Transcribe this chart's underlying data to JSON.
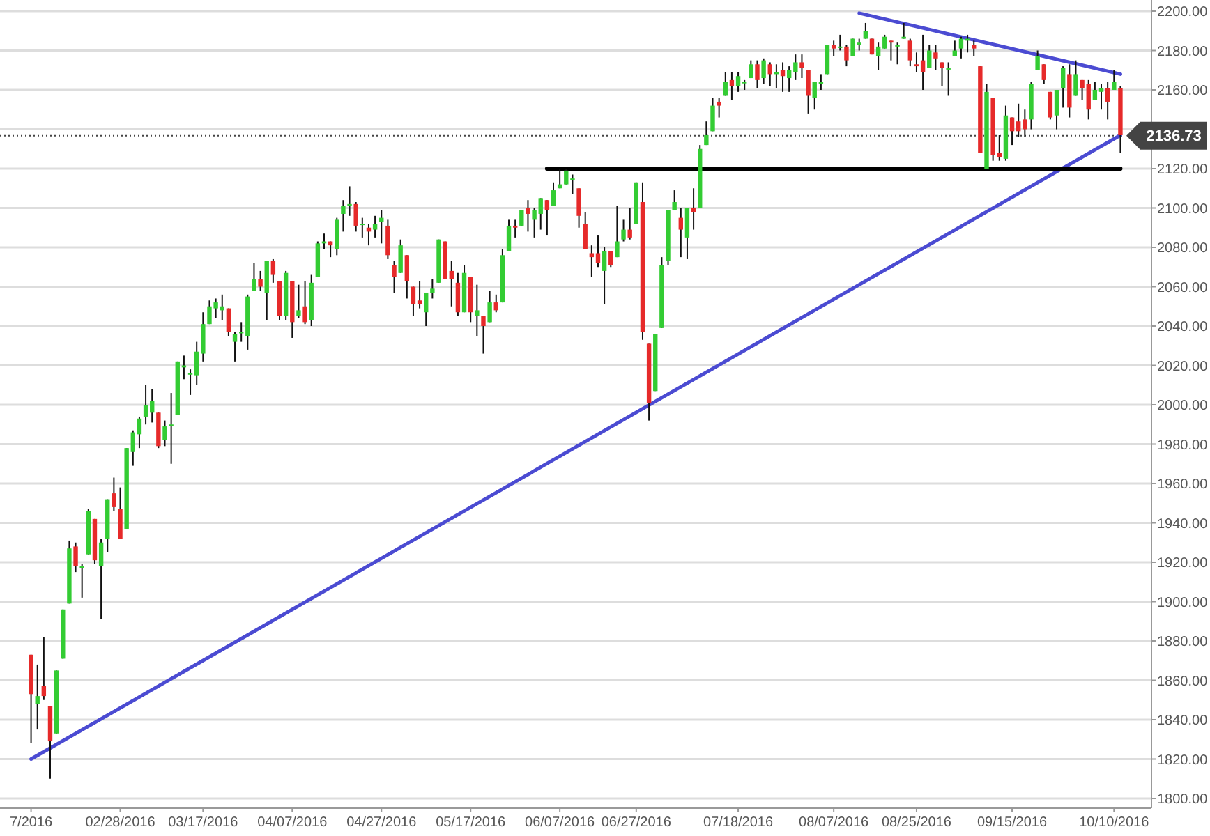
{
  "chart_data": {
    "type": "candlestick",
    "categories": [
      "7/2016",
      null,
      null,
      null,
      null,
      null,
      null,
      null,
      null,
      null,
      null,
      null,
      null,
      null,
      "02/28/2016",
      null,
      null,
      null,
      null,
      null,
      null,
      null,
      null,
      null,
      null,
      null,
      null,
      "03/17/2016",
      null,
      null,
      null,
      null,
      null,
      null,
      null,
      null,
      null,
      null,
      null,
      null,
      null,
      "04/07/2016",
      null,
      null,
      null,
      null,
      null,
      null,
      null,
      null,
      null,
      null,
      null,
      null,
      null,
      "04/27/2016",
      null,
      null,
      null,
      null,
      null,
      null,
      null,
      null,
      null,
      null,
      null,
      null,
      null,
      "05/17/2016",
      null,
      null,
      null,
      null,
      null,
      null,
      null,
      null,
      null,
      null,
      null,
      null,
      null,
      "06/07/2016",
      null,
      null,
      null,
      null,
      null,
      null,
      null,
      null,
      null,
      null,
      null,
      "06/27/2016",
      null,
      null,
      null,
      null,
      null,
      null,
      null,
      null,
      null,
      null,
      null,
      null,
      null,
      null,
      null,
      "07/18/2016",
      null,
      null,
      null,
      null,
      null,
      null,
      null,
      null,
      null,
      null,
      null,
      null,
      null,
      null,
      "08/07/2016",
      null,
      null,
      null,
      null,
      null,
      null,
      null,
      null,
      null,
      null,
      null,
      null,
      "08/25/2016",
      null,
      null,
      null,
      null,
      null,
      null,
      null,
      null,
      null,
      null,
      null,
      null,
      null,
      null,
      "09/15/2016",
      null,
      null,
      null,
      null,
      null,
      null,
      null,
      null,
      null,
      null,
      null,
      null,
      null,
      null,
      null,
      "10/10/2016",
      null
    ],
    "ohlc": [
      [
        1873,
        1873,
        1828,
        1853
      ],
      [
        1848,
        1868,
        1835,
        1852
      ],
      [
        1857,
        1882,
        1850,
        1852
      ],
      [
        1847,
        1847,
        1810,
        1829
      ],
      [
        1833,
        1865,
        1833,
        1865
      ],
      [
        1871,
        1896,
        1871,
        1896
      ],
      [
        1899,
        1931,
        1899,
        1927
      ],
      [
        1928,
        1930,
        1915,
        1918
      ],
      [
        1917,
        1919,
        1902,
        1918
      ],
      [
        1924,
        1947,
        1924,
        1946
      ],
      [
        1942,
        1942,
        1919,
        1921
      ],
      [
        1918,
        1932,
        1891,
        1930
      ],
      [
        1932,
        1952,
        1925,
        1952
      ],
      [
        1955,
        1963,
        1946,
        1948
      ],
      [
        1947,
        1958,
        1932,
        1932
      ],
      [
        1937,
        1978,
        1937,
        1978
      ],
      [
        1976,
        1987,
        1969,
        1986
      ],
      [
        1985,
        1994,
        1978,
        1993
      ],
      [
        1994,
        2010,
        1990,
        2000
      ],
      [
        1996,
        2008,
        1991,
        2002
      ],
      [
        1996,
        1996,
        1978,
        1979
      ],
      [
        1982,
        1992,
        1979,
        1989
      ],
      [
        1990,
        2006,
        1970,
        1990
      ],
      [
        1995,
        2022,
        1995,
        2022
      ],
      [
        2019,
        2025,
        2013,
        2020
      ],
      [
        2016,
        2018,
        2005,
        2016
      ],
      [
        2015,
        2032,
        2010,
        2027
      ],
      [
        2026,
        2047,
        2022,
        2041
      ],
      [
        2041,
        2053,
        2041,
        2050
      ],
      [
        2049,
        2054,
        2044,
        2052
      ],
      [
        2048,
        2056,
        2043,
        2050
      ],
      [
        2049,
        2049,
        2035,
        2037
      ],
      [
        2032,
        2037,
        2022,
        2036
      ],
      [
        2037,
        2042,
        2032,
        2037
      ],
      [
        2035,
        2056,
        2028,
        2055
      ],
      [
        2058,
        2072,
        2058,
        2064
      ],
      [
        2064,
        2068,
        2058,
        2060
      ],
      [
        2057,
        2073,
        2043,
        2073
      ],
      [
        2073,
        2074,
        2062,
        2066
      ],
      [
        2063,
        2063,
        2043,
        2045
      ],
      [
        2045,
        2068,
        2043,
        2067
      ],
      [
        2063,
        2063,
        2034,
        2042
      ],
      [
        2045,
        2061,
        2044,
        2048
      ],
      [
        2050,
        2063,
        2041,
        2042
      ],
      [
        2043,
        2066,
        2040,
        2062
      ],
      [
        2065,
        2083,
        2065,
        2082
      ],
      [
        2082,
        2087,
        2079,
        2083
      ],
      [
        2083,
        2083,
        2075,
        2081
      ],
      [
        2079,
        2095,
        2076,
        2094
      ],
      [
        2097,
        2104,
        2088,
        2101
      ],
      [
        2101,
        2111,
        2096,
        2102
      ],
      [
        2102,
        2103,
        2088,
        2091
      ],
      [
        2092,
        2095,
        2085,
        2092
      ],
      [
        2090,
        2092,
        2081,
        2088
      ],
      [
        2089,
        2096,
        2085,
        2092
      ],
      [
        2093,
        2099,
        2082,
        2095
      ],
      [
        2091,
        2094,
        2074,
        2076
      ],
      [
        2071,
        2073,
        2057,
        2065
      ],
      [
        2067,
        2084,
        2067,
        2081
      ],
      [
        2076,
        2076,
        2054,
        2063
      ],
      [
        2060,
        2060,
        2045,
        2051
      ],
      [
        2053,
        2063,
        2049,
        2051
      ],
      [
        2047,
        2057,
        2040,
        2057
      ],
      [
        2057,
        2064,
        2054,
        2059
      ],
      [
        2062,
        2084,
        2062,
        2084
      ],
      [
        2083,
        2083,
        2064,
        2064
      ],
      [
        2068,
        2073,
        2050,
        2064
      ],
      [
        2062,
        2067,
        2045,
        2047
      ],
      [
        2047,
        2071,
        2047,
        2067
      ],
      [
        2065,
        2065,
        2042,
        2047
      ],
      [
        2045,
        2061,
        2035,
        2048
      ],
      [
        2045,
        2045,
        2026,
        2040
      ],
      [
        2042,
        2058,
        2042,
        2052
      ],
      [
        2052,
        2056,
        2047,
        2048
      ],
      [
        2052,
        2079,
        2052,
        2076
      ],
      [
        2078,
        2094,
        2078,
        2091
      ],
      [
        2091,
        2094,
        2085,
        2090
      ],
      [
        2091,
        2099,
        2091,
        2099
      ],
      [
        2100,
        2104,
        2088,
        2097
      ],
      [
        2094,
        2100,
        2085,
        2099
      ],
      [
        2097,
        2105,
        2089,
        2105
      ],
      [
        2104,
        2104,
        2086,
        2099
      ],
      [
        2101,
        2113,
        2101,
        2109
      ],
      [
        2110,
        2120,
        2110,
        2112
      ],
      [
        2112,
        2120,
        2112,
        2119
      ],
      [
        2115,
        2117,
        2107,
        2115
      ],
      [
        2110,
        2110,
        2090,
        2096
      ],
      [
        2092,
        2098,
        2079,
        2079
      ],
      [
        2077,
        2081,
        2065,
        2075
      ],
      [
        2077,
        2086,
        2070,
        2072
      ],
      [
        2068,
        2080,
        2051,
        2078
      ],
      [
        2078,
        2078,
        2070,
        2071
      ],
      [
        2075,
        2101,
        2075,
        2083
      ],
      [
        2084,
        2094,
        2083,
        2089
      ],
      [
        2089,
        2100,
        2084,
        2085
      ],
      [
        2092,
        2113,
        2092,
        2113
      ],
      [
        2103,
        2113,
        2033,
        2037
      ],
      [
        2031,
        2031,
        1992,
        2001
      ],
      [
        2007,
        2036,
        2007,
        2036
      ],
      [
        2039,
        2075,
        2039,
        2071
      ],
      [
        2073,
        2099,
        2071,
        2099
      ],
      [
        2099,
        2109,
        2099,
        2103
      ],
      [
        2095,
        2100,
        2075,
        2089
      ],
      [
        2085,
        2100,
        2074,
        2100
      ],
      [
        2100,
        2110,
        2089,
        2098
      ],
      [
        2100,
        2132,
        2100,
        2130
      ],
      [
        2132,
        2144,
        2132,
        2137
      ],
      [
        2139,
        2156,
        2139,
        2152
      ],
      [
        2154,
        2156,
        2146,
        2152
      ],
      [
        2157,
        2169,
        2157,
        2164
      ],
      [
        2165,
        2169,
        2155,
        2162
      ],
      [
        2162,
        2169,
        2159,
        2167
      ],
      [
        2164,
        2165,
        2160,
        2164
      ],
      [
        2166,
        2175,
        2166,
        2173
      ],
      [
        2173,
        2175,
        2161,
        2165
      ],
      [
        2166,
        2176,
        2163,
        2175
      ],
      [
        2173,
        2174,
        2162,
        2168
      ],
      [
        2168,
        2173,
        2161,
        2169
      ],
      [
        2170,
        2174,
        2159,
        2167
      ],
      [
        2166,
        2172,
        2159,
        2170
      ],
      [
        2169,
        2178,
        2165,
        2174
      ],
      [
        2174,
        2178,
        2166,
        2171
      ],
      [
        2170,
        2170,
        2148,
        2157
      ],
      [
        2156,
        2164,
        2150,
        2164
      ],
      [
        2163,
        2168,
        2160,
        2164
      ],
      [
        2168,
        2183,
        2168,
        2183
      ],
      [
        2183,
        2185,
        2177,
        2181
      ],
      [
        2182,
        2188,
        2180,
        2182
      ],
      [
        2182,
        2183,
        2172,
        2175
      ],
      [
        2177,
        2186,
        2177,
        2186
      ],
      [
        2183,
        2186,
        2180,
        2184
      ],
      [
        2186,
        2194,
        2186,
        2190
      ],
      [
        2186,
        2186,
        2178,
        2178
      ],
      [
        2177,
        2184,
        2170,
        2182
      ],
      [
        2181,
        2188,
        2181,
        2187
      ],
      [
        2185,
        2185,
        2175,
        2184
      ],
      [
        2182,
        2184,
        2173,
        2183
      ],
      [
        2186,
        2194,
        2186,
        2187
      ],
      [
        2185,
        2186,
        2172,
        2175
      ],
      [
        2173,
        2179,
        2169,
        2172
      ],
      [
        2175,
        2188,
        2160,
        2169
      ],
      [
        2171,
        2183,
        2171,
        2180
      ],
      [
        2179,
        2183,
        2170,
        2176
      ],
      [
        2174,
        2174,
        2162,
        2171
      ],
      [
        2171,
        2174,
        2157,
        2171
      ],
      [
        2177,
        2185,
        2177,
        2180
      ],
      [
        2181,
        2187,
        2176,
        2186
      ],
      [
        2185,
        2188,
        2179,
        2186
      ],
      [
        2183,
        2185,
        2177,
        2181
      ],
      [
        2172,
        2172,
        2128,
        2128
      ],
      [
        2120,
        2163,
        2120,
        2159
      ],
      [
        2156,
        2156,
        2124,
        2127
      ],
      [
        2128,
        2137,
        2124,
        2126
      ],
      [
        2125,
        2152,
        2124,
        2147
      ],
      [
        2146,
        2146,
        2132,
        2139
      ],
      [
        2144,
        2153,
        2136,
        2139
      ],
      [
        2145,
        2150,
        2136,
        2140
      ],
      [
        2145,
        2164,
        2140,
        2163
      ],
      [
        2170,
        2180,
        2170,
        2177
      ],
      [
        2173,
        2173,
        2163,
        2165
      ],
      [
        2159,
        2159,
        2145,
        2146
      ],
      [
        2147,
        2160,
        2140,
        2160
      ],
      [
        2161,
        2172,
        2151,
        2171
      ],
      [
        2168,
        2173,
        2146,
        2151
      ],
      [
        2157,
        2175,
        2157,
        2168
      ],
      [
        2165,
        2165,
        2155,
        2161
      ],
      [
        2163,
        2165,
        2145,
        2150
      ],
      [
        2155,
        2164,
        2155,
        2160
      ],
      [
        2159,
        2163,
        2150,
        2161
      ],
      [
        2161,
        2164,
        2145,
        2154
      ],
      [
        2160,
        2170,
        2160,
        2164
      ],
      [
        2161,
        2162,
        2128,
        2137
      ]
    ],
    "colors": [
      "#e62a2a",
      "#33cc33",
      "#e62a2a",
      "#e62a2a",
      "#33cc33",
      "#33cc33",
      "#33cc33",
      "#e62a2a",
      "#33cc33",
      "#33cc33",
      "#e62a2a",
      "#33cc33",
      "#33cc33",
      "#e62a2a",
      "#e62a2a",
      "#33cc33",
      "#33cc33",
      "#33cc33",
      "#33cc33",
      "#33cc33",
      "#e62a2a",
      "#33cc33",
      "#33cc33",
      "#33cc33",
      "#33cc33",
      "#33cc33",
      "#33cc33",
      "#33cc33",
      "#33cc33",
      "#33cc33",
      "#33cc33",
      "#e62a2a",
      "#33cc33",
      "#33cc33",
      "#33cc33",
      "#33cc33",
      "#e62a2a",
      "#33cc33",
      "#e62a2a",
      "#e62a2a",
      "#33cc33",
      "#e62a2a",
      "#33cc33",
      "#e62a2a",
      "#33cc33",
      "#33cc33",
      "#33cc33",
      "#e62a2a",
      "#33cc33",
      "#33cc33",
      "#33cc33",
      "#e62a2a",
      "#33cc33",
      "#e62a2a",
      "#33cc33",
      "#33cc33",
      "#e62a2a",
      "#e62a2a",
      "#33cc33",
      "#e62a2a",
      "#e62a2a",
      "#e62a2a",
      "#33cc33",
      "#33cc33",
      "#33cc33",
      "#e62a2a",
      "#e62a2a",
      "#e62a2a",
      "#33cc33",
      "#e62a2a",
      "#33cc33",
      "#e62a2a",
      "#33cc33",
      "#e62a2a",
      "#33cc33",
      "#33cc33",
      "#e62a2a",
      "#33cc33",
      "#e62a2a",
      "#33cc33",
      "#33cc33",
      "#e62a2a",
      "#33cc33",
      "#33cc33",
      "#33cc33",
      "#33cc33",
      "#e62a2a",
      "#e62a2a",
      "#e62a2a",
      "#e62a2a",
      "#33cc33",
      "#e62a2a",
      "#33cc33",
      "#33cc33",
      "#e62a2a",
      "#33cc33",
      "#e62a2a",
      "#e62a2a",
      "#33cc33",
      "#33cc33",
      "#33cc33",
      "#33cc33",
      "#e62a2a",
      "#33cc33",
      "#e62a2a",
      "#33cc33",
      "#33cc33",
      "#33cc33",
      "#e62a2a",
      "#33cc33",
      "#e62a2a",
      "#33cc33",
      "#33cc33",
      "#33cc33",
      "#e62a2a",
      "#33cc33",
      "#e62a2a",
      "#33cc33",
      "#e62a2a",
      "#33cc33",
      "#33cc33",
      "#e62a2a",
      "#e62a2a",
      "#33cc33",
      "#33cc33",
      "#33cc33",
      "#e62a2a",
      "#33cc33",
      "#e62a2a",
      "#33cc33",
      "#33cc33",
      "#33cc33",
      "#e62a2a",
      "#33cc33",
      "#33cc33",
      "#e62a2a",
      "#33cc33",
      "#33cc33",
      "#e62a2a",
      "#e62a2a",
      "#e62a2a",
      "#33cc33",
      "#e62a2a",
      "#e62a2a",
      "#33cc33",
      "#33cc33",
      "#33cc33",
      "#33cc33",
      "#e62a2a",
      "#e62a2a",
      "#33cc33",
      "#e62a2a",
      "#e62a2a",
      "#33cc33",
      "#e62a2a",
      "#e62a2a",
      "#e62a2a",
      "#33cc33",
      "#33cc33",
      "#e62a2a",
      "#e62a2a",
      "#33cc33",
      "#33cc33",
      "#e62a2a",
      "#33cc33",
      "#e62a2a",
      "#e62a2a",
      "#33cc33",
      "#33cc33",
      "#e62a2a",
      "#33cc33",
      "#e62a2a"
    ],
    "ylim": [
      1800,
      2200
    ],
    "yticks": [
      {
        "value": 1800,
        "label": "1800.00"
      },
      {
        "value": 1820,
        "label": "1820.00"
      },
      {
        "value": 1840,
        "label": "1840.00"
      },
      {
        "value": 1860,
        "label": "1860.00"
      },
      {
        "value": 1880,
        "label": "1880.00"
      },
      {
        "value": 1900,
        "label": "1900.00"
      },
      {
        "value": 1920,
        "label": "1920.00"
      },
      {
        "value": 1940,
        "label": "1940.00"
      },
      {
        "value": 1960,
        "label": "1960.00"
      },
      {
        "value": 1980,
        "label": "1980.00"
      },
      {
        "value": 2000,
        "label": "2000.00"
      },
      {
        "value": 2020,
        "label": "2020.00"
      },
      {
        "value": 2040,
        "label": "2040.00"
      },
      {
        "value": 2060,
        "label": "2060.00"
      },
      {
        "value": 2080,
        "label": "2080.00"
      },
      {
        "value": 2100,
        "label": "2100.00"
      },
      {
        "value": 2120,
        "label": "2120.00"
      },
      {
        "value": 2140,
        "label": null
      },
      {
        "value": 2160,
        "label": "2160.00"
      },
      {
        "value": 2180,
        "label": "2180.00"
      },
      {
        "value": 2200,
        "label": "2200.00"
      }
    ],
    "grid": "y",
    "series": [
      {
        "type": "line",
        "color": "#4b4bd2",
        "values": [
          1820,
          null,
          null,
          null,
          null,
          null,
          null,
          null,
          null,
          null,
          null,
          null,
          null,
          null,
          null,
          null,
          null,
          null,
          null,
          null,
          null,
          null,
          null,
          null,
          null,
          null,
          null,
          null,
          null,
          null,
          null,
          null,
          null,
          null,
          null,
          null,
          null,
          null,
          null,
          null,
          null,
          null,
          null,
          null,
          null,
          null,
          null,
          null,
          null,
          null,
          null,
          null,
          null,
          null,
          null,
          null,
          null,
          null,
          null,
          null,
          null,
          null,
          null,
          null,
          null,
          null,
          null,
          null,
          null,
          null,
          null,
          null,
          null,
          null,
          null,
          null,
          null,
          null,
          null,
          null,
          null,
          null,
          null,
          null,
          null,
          null,
          null,
          null,
          null,
          null,
          null,
          null,
          null,
          null,
          null,
          null,
          null,
          null,
          null,
          null,
          null,
          null,
          null,
          null,
          null,
          null,
          null,
          null,
          null,
          null,
          null,
          null,
          null,
          null,
          null,
          null,
          null,
          null,
          null,
          null,
          null,
          null,
          null,
          null,
          null,
          null,
          null,
          null,
          null,
          null,
          null,
          null,
          null,
          null,
          null,
          null,
          null,
          null,
          null,
          null,
          null,
          null,
          null,
          null,
          null,
          null,
          null,
          null,
          null,
          null,
          null,
          null,
          null,
          null,
          null,
          null,
          null,
          null,
          null,
          null,
          null,
          null,
          null,
          null,
          null,
          null,
          null,
          null,
          null,
          null,
          null,
          2137
        ]
      },
      {
        "type": "line",
        "color": "#4b4bd2",
        "values": [
          null,
          null,
          null,
          null,
          null,
          null,
          null,
          null,
          null,
          null,
          null,
          null,
          null,
          null,
          null,
          null,
          null,
          null,
          null,
          null,
          null,
          null,
          null,
          null,
          null,
          null,
          null,
          null,
          null,
          null,
          null,
          null,
          null,
          null,
          null,
          null,
          null,
          null,
          null,
          null,
          null,
          null,
          null,
          null,
          null,
          null,
          null,
          null,
          null,
          null,
          null,
          null,
          null,
          null,
          null,
          null,
          null,
          null,
          null,
          null,
          null,
          null,
          null,
          null,
          null,
          null,
          null,
          null,
          null,
          null,
          null,
          null,
          null,
          null,
          null,
          null,
          null,
          null,
          null,
          null,
          null,
          null,
          null,
          null,
          null,
          null,
          null,
          null,
          null,
          null,
          null,
          null,
          null,
          null,
          null,
          null,
          null,
          null,
          null,
          null,
          null,
          null,
          null,
          null,
          null,
          null,
          null,
          null,
          null,
          null,
          null,
          null,
          null,
          null,
          null,
          null,
          null,
          null,
          null,
          null,
          null,
          null,
          null,
          null,
          null,
          null,
          null,
          null,
          null,
          null,
          2199,
          null,
          null,
          null,
          null,
          null,
          null,
          null,
          null,
          null,
          null,
          null,
          null,
          null,
          null,
          null,
          null,
          null,
          null,
          null,
          null,
          null,
          null,
          null,
          null,
          null,
          null,
          null,
          null,
          null,
          null,
          null,
          null,
          null,
          null,
          null,
          null,
          null,
          null,
          null,
          null,
          2168
        ]
      },
      {
        "type": "line",
        "color": "#000000",
        "values": [
          null,
          null,
          null,
          null,
          null,
          null,
          null,
          null,
          null,
          null,
          null,
          null,
          null,
          null,
          null,
          null,
          null,
          null,
          null,
          null,
          null,
          null,
          null,
          null,
          null,
          null,
          null,
          null,
          null,
          null,
          null,
          null,
          null,
          null,
          null,
          null,
          null,
          null,
          null,
          null,
          null,
          null,
          null,
          null,
          null,
          null,
          null,
          null,
          null,
          null,
          null,
          null,
          null,
          null,
          null,
          null,
          null,
          null,
          null,
          null,
          null,
          null,
          null,
          null,
          null,
          null,
          null,
          null,
          null,
          null,
          null,
          null,
          null,
          null,
          null,
          null,
          null,
          null,
          null,
          null,
          null,
          2120,
          null,
          null,
          null,
          null,
          null,
          null,
          null,
          null,
          null,
          null,
          null,
          null,
          null,
          null,
          null,
          null,
          null,
          null,
          null,
          null,
          null,
          null,
          null,
          null,
          null,
          null,
          null,
          null,
          null,
          null,
          null,
          null,
          null,
          null,
          null,
          null,
          null,
          null,
          null,
          null,
          null,
          null,
          null,
          null,
          null,
          null,
          null,
          null,
          null,
          null,
          null,
          null,
          null,
          null,
          null,
          null,
          null,
          null,
          null,
          null,
          null,
          null,
          null,
          null,
          null,
          null,
          null,
          null,
          null,
          null,
          null,
          null,
          null,
          null,
          null,
          null,
          null,
          null,
          null,
          null,
          null,
          null,
          null,
          null,
          null,
          null,
          null,
          null,
          null,
          2120
        ]
      }
    ],
    "ref_lines": [
      {
        "axis": "y",
        "value": 2136.73,
        "label": "2136.73",
        "line_style": "dotted",
        "color": "#444444"
      }
    ]
  }
}
